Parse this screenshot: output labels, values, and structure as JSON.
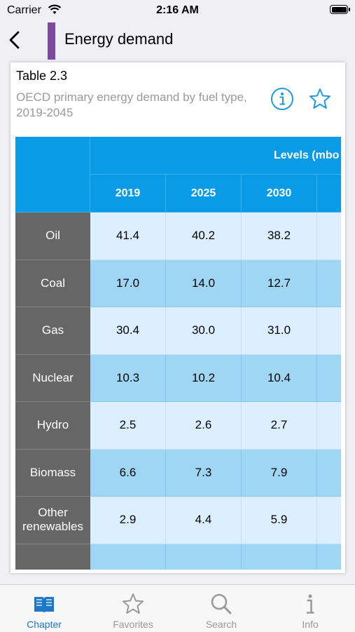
{
  "status": {
    "carrier": "Carrier",
    "time": "2:16 AM"
  },
  "nav": {
    "title": "Energy demand"
  },
  "card": {
    "table_number": "Table 2.3",
    "description": "OECD primary energy demand by fuel type, 2019-2045",
    "group_header": "Levels (mbo",
    "years": [
      "2019",
      "2025",
      "2030",
      ""
    ],
    "rows": [
      {
        "label": "Oil",
        "values": [
          "41.4",
          "40.2",
          "38.2"
        ]
      },
      {
        "label": "Coal",
        "values": [
          "17.0",
          "14.0",
          "12.7"
        ]
      },
      {
        "label": "Gas",
        "values": [
          "30.4",
          "30.0",
          "31.0"
        ]
      },
      {
        "label": "Nuclear",
        "values": [
          "10.3",
          "10.2",
          "10.4"
        ]
      },
      {
        "label": "Hydro",
        "values": [
          "2.5",
          "2.6",
          "2.7"
        ]
      },
      {
        "label": "Biomass",
        "values": [
          "6.6",
          "7.3",
          "7.9"
        ]
      },
      {
        "label": "Other\nrenewables",
        "values": [
          "2.9",
          "4.4",
          "5.9"
        ]
      },
      {
        "label": "",
        "values": [
          "",
          "",
          ""
        ]
      }
    ]
  },
  "tabbar": {
    "tabs": [
      {
        "label": "Chapter",
        "icon": "book-icon",
        "active": true
      },
      {
        "label": "Favorites",
        "icon": "star-icon",
        "active": false
      },
      {
        "label": "Search",
        "icon": "search-icon",
        "active": false
      },
      {
        "label": "Info",
        "icon": "info-icon",
        "active": false
      }
    ]
  },
  "colors": {
    "accent": "#0a9be6",
    "chapter_bar": "#7b4aa0",
    "active_tab": "#1e78c8"
  }
}
